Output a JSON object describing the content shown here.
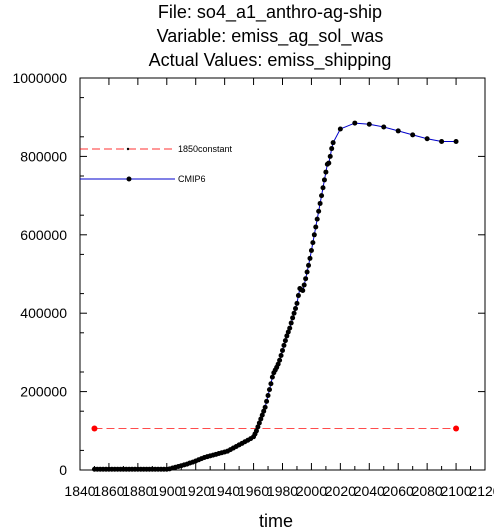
{
  "titles": [
    "File: so4_a1_anthro-ag-ship",
    "Variable: emiss_ag_sol_was",
    "Actual Values: emiss_shipping"
  ],
  "chart_data": {
    "type": "line",
    "xlabel": "time",
    "ylabel": "",
    "xlim": [
      1840,
      2120
    ],
    "ylim": [
      0,
      1000000
    ],
    "x_ticks": [
      1840,
      1860,
      1880,
      1900,
      1920,
      1940,
      1960,
      1980,
      2000,
      2020,
      2040,
      2060,
      2080,
      2100,
      2120
    ],
    "y_ticks": [
      0,
      200000,
      400000,
      600000,
      800000,
      1000000
    ],
    "grid": false,
    "legend_position": "upper-left inside",
    "series": [
      {
        "name": "1850constant",
        "color": "#ff0000",
        "line_style": "dashed",
        "marker_color": "#ff0000",
        "x": [
          1850,
          2100
        ],
        "y": [
          106000,
          106000
        ]
      },
      {
        "name": "CMIP6",
        "color": "#0000cc",
        "line_style": "solid",
        "marker_color": "#000000",
        "x": [
          1850,
          1852,
          1854,
          1856,
          1858,
          1860,
          1862,
          1864,
          1866,
          1868,
          1870,
          1872,
          1874,
          1876,
          1878,
          1880,
          1882,
          1884,
          1886,
          1888,
          1890,
          1892,
          1894,
          1896,
          1898,
          1900,
          1902,
          1904,
          1906,
          1908,
          1910,
          1912,
          1914,
          1916,
          1918,
          1920,
          1922,
          1924,
          1926,
          1928,
          1930,
          1932,
          1934,
          1936,
          1938,
          1940,
          1942,
          1944,
          1946,
          1948,
          1950,
          1952,
          1954,
          1956,
          1958,
          1960,
          1961,
          1962,
          1963,
          1964,
          1965,
          1966,
          1967,
          1968,
          1969,
          1970,
          1971,
          1972,
          1973,
          1974,
          1975,
          1976,
          1977,
          1978,
          1979,
          1980,
          1981,
          1982,
          1983,
          1984,
          1985,
          1986,
          1987,
          1988,
          1989,
          1990,
          1991,
          1992,
          1993,
          1994,
          1995,
          1996,
          1997,
          1998,
          1999,
          2000,
          2001,
          2002,
          2003,
          2004,
          2005,
          2006,
          2007,
          2008,
          2009,
          2010,
          2011,
          2012,
          2013,
          2014,
          2015,
          2020,
          2030,
          2040,
          2050,
          2060,
          2070,
          2080,
          2090,
          2100
        ],
        "y": [
          2000,
          2000,
          2000,
          2000,
          2000,
          2000,
          2000,
          2000,
          2000,
          2000,
          2000,
          2000,
          2000,
          2000,
          2000,
          2000,
          2000,
          2000,
          2000,
          2000,
          2000,
          2000,
          2000,
          2000,
          2000,
          2000,
          3000,
          5000,
          7000,
          9000,
          11000,
          13000,
          15000,
          18000,
          20000,
          23000,
          26000,
          29000,
          32000,
          34000,
          36000,
          38000,
          40000,
          42000,
          44000,
          46000,
          48000,
          52000,
          56000,
          60000,
          64000,
          68000,
          72000,
          76000,
          80000,
          85000,
          92000,
          100000,
          110000,
          120000,
          130000,
          140000,
          150000,
          160000,
          175000,
          190000,
          205000,
          220000,
          237000,
          248000,
          255000,
          262000,
          270000,
          280000,
          292000,
          305000,
          318000,
          330000,
          342000,
          352000,
          362000,
          375000,
          388000,
          400000,
          412000,
          425000,
          445000,
          463000,
          460000,
          458000,
          472000,
          488000,
          505000,
          522000,
          540000,
          560000,
          580000,
          600000,
          620000,
          640000,
          660000,
          680000,
          700000,
          720000,
          740000,
          760000,
          780000,
          783000,
          800000,
          820000,
          835000,
          870000,
          885000,
          882000,
          875000,
          865000,
          855000,
          845000,
          838000,
          838000
        ]
      }
    ]
  }
}
